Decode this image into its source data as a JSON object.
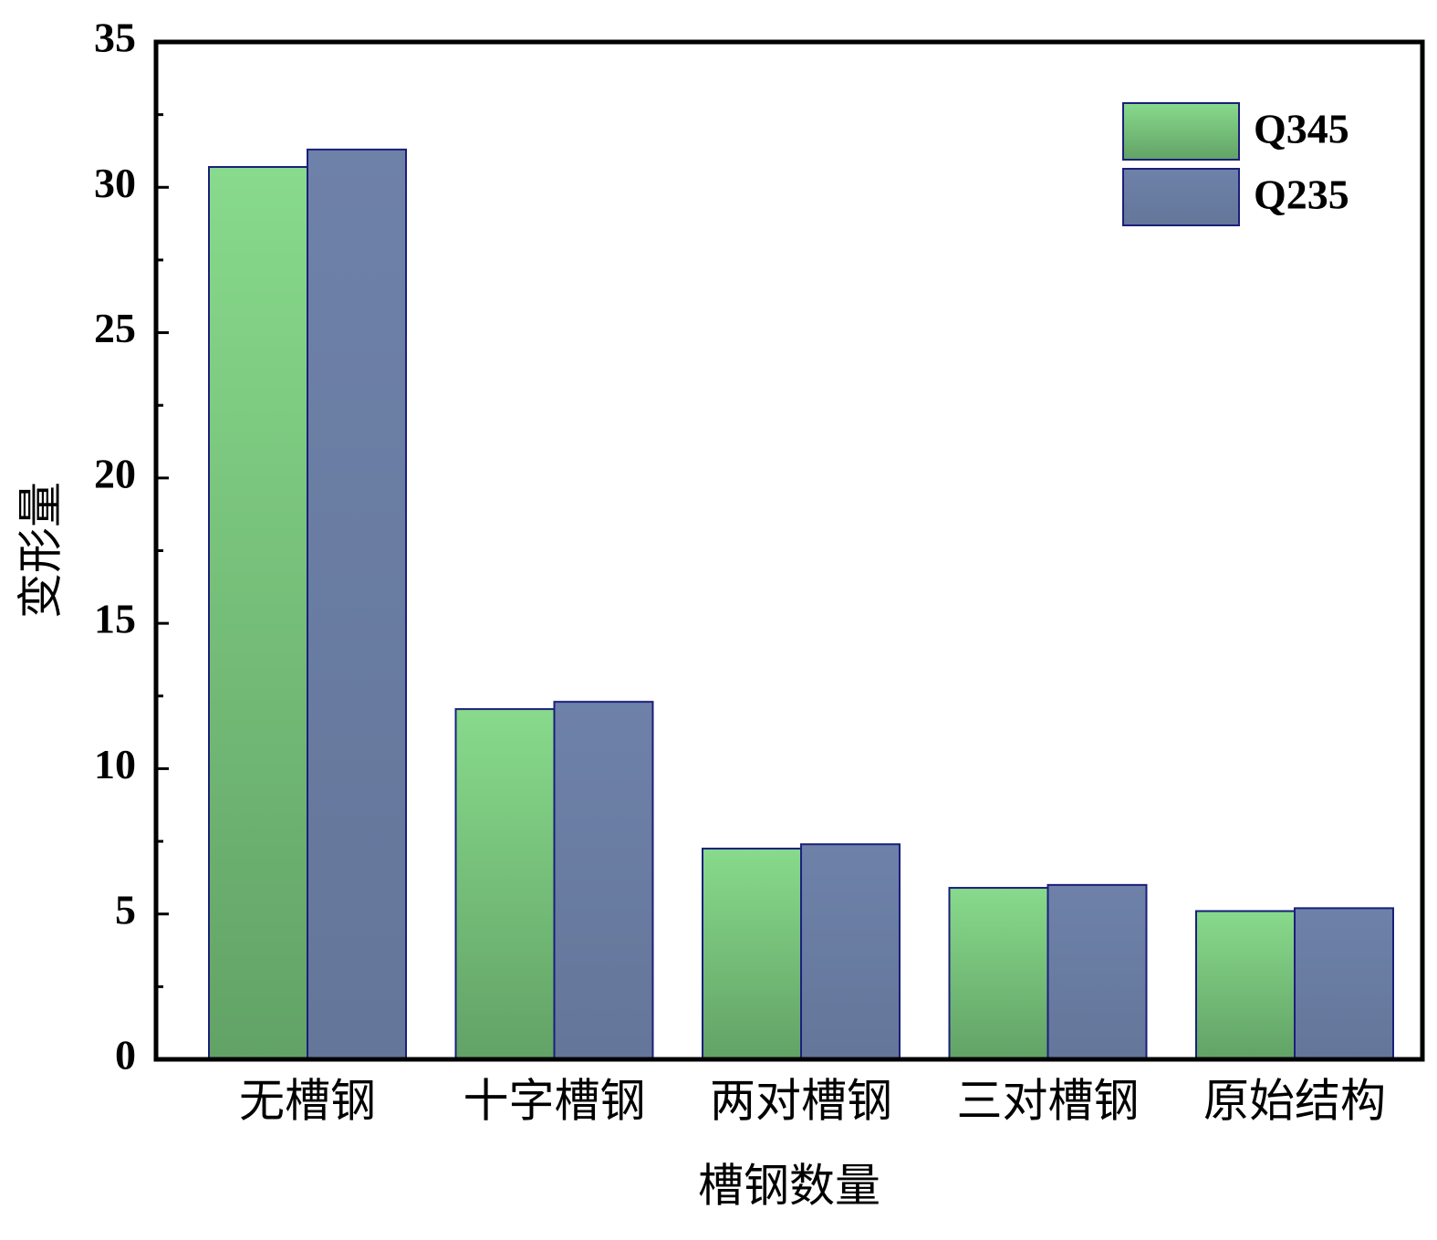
{
  "chart_data": {
    "type": "bar",
    "x_label": "槽钢数量",
    "y_label": "变形量",
    "categories": [
      "无槽钢",
      "十字槽钢",
      "两对槽钢",
      "三对槽钢",
      "原始结构"
    ],
    "series": [
      {
        "name": "Q345",
        "color": "#75bd79",
        "values": [
          30.7,
          12.05,
          7.25,
          5.9,
          5.1
        ]
      },
      {
        "name": "Q235",
        "color": "#697ba1",
        "values": [
          31.3,
          12.3,
          7.4,
          6.0,
          5.2
        ]
      }
    ],
    "ylim": [
      0,
      35
    ],
    "yticks": [
      0,
      5,
      10,
      15,
      20,
      25,
      30,
      35
    ],
    "yminor": [
      2.5,
      7.5,
      12.5,
      17.5,
      22.5,
      27.5,
      32.5
    ],
    "legend": "top-right",
    "grid": false
  }
}
